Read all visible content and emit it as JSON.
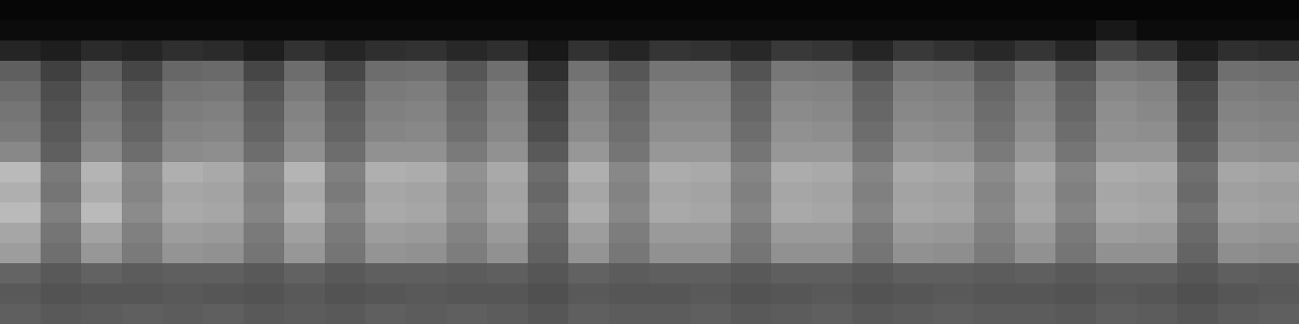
{
  "chart_data": {
    "type": "heatmap",
    "tick_labels": false,
    "color": "greys",
    "zlim": [
      0,
      100
    ],
    "cells": [
      [
        2,
        2,
        2,
        2,
        2,
        2,
        2,
        2,
        2,
        2,
        2,
        2,
        2,
        2,
        2,
        2,
        2,
        2,
        2,
        2,
        2,
        2,
        2,
        2,
        2,
        2,
        2,
        2,
        2,
        2,
        2,
        2
      ],
      [
        4,
        4,
        4,
        4,
        4,
        4,
        4,
        4,
        4,
        4,
        4,
        4,
        4,
        4,
        4,
        4,
        4,
        4,
        4,
        4,
        4,
        4,
        4,
        4,
        4,
        4,
        4,
        8,
        4,
        4,
        4,
        4
      ],
      [
        12,
        10,
        14,
        12,
        15,
        14,
        10,
        16,
        12,
        15,
        16,
        13,
        15,
        8,
        16,
        12,
        17,
        16,
        13,
        18,
        17,
        12,
        18,
        16,
        13,
        17,
        12,
        22,
        18,
        10,
        15,
        14
      ],
      [
        30,
        20,
        32,
        22,
        33,
        34,
        22,
        35,
        22,
        35,
        36,
        27,
        36,
        15,
        37,
        27,
        38,
        38,
        26,
        39,
        38,
        26,
        38,
        37,
        28,
        38,
        26,
        40,
        38,
        18,
        36,
        35
      ],
      [
        35,
        24,
        37,
        27,
        38,
        39,
        27,
        40,
        27,
        40,
        41,
        32,
        41,
        20,
        42,
        32,
        43,
        43,
        31,
        44,
        43,
        31,
        43,
        42,
        33,
        43,
        31,
        45,
        43,
        23,
        41,
        40
      ],
      [
        38,
        26,
        40,
        30,
        41,
        42,
        30,
        43,
        30,
        42,
        43,
        34,
        43,
        22,
        44,
        34,
        45,
        45,
        33,
        46,
        45,
        33,
        45,
        44,
        35,
        45,
        33,
        47,
        45,
        25,
        43,
        42
      ],
      [
        40,
        28,
        42,
        32,
        43,
        44,
        32,
        45,
        32,
        44,
        45,
        36,
        45,
        24,
        46,
        36,
        47,
        47,
        35,
        48,
        47,
        35,
        47,
        46,
        37,
        47,
        35,
        48,
        47,
        27,
        45,
        44
      ],
      [
        45,
        30,
        46,
        35,
        46,
        47,
        35,
        48,
        35,
        48,
        48,
        40,
        48,
        28,
        50,
        38,
        50,
        50,
        38,
        50,
        50,
        38,
        50,
        49,
        40,
        50,
        38,
        50,
        50,
        30,
        48,
        47
      ],
      [
        62,
        40,
        60,
        45,
        58,
        56,
        44,
        60,
        42,
        58,
        57,
        48,
        56,
        35,
        58,
        45,
        57,
        56,
        44,
        57,
        56,
        44,
        56,
        55,
        46,
        56,
        44,
        57,
        56,
        36,
        55,
        54
      ],
      [
        58,
        38,
        57,
        44,
        55,
        54,
        42,
        56,
        40,
        55,
        54,
        46,
        54,
        33,
        55,
        43,
        55,
        54,
        42,
        55,
        54,
        42,
        54,
        53,
        44,
        54,
        42,
        55,
        54,
        34,
        53,
        52
      ],
      [
        62,
        42,
        62,
        46,
        56,
        55,
        44,
        58,
        43,
        56,
        55,
        47,
        55,
        36,
        57,
        45,
        56,
        55,
        44,
        56,
        55,
        44,
        55,
        54,
        45,
        55,
        44,
        56,
        55,
        37,
        54,
        53
      ],
      [
        55,
        38,
        54,
        42,
        52,
        51,
        40,
        53,
        40,
        52,
        51,
        43,
        51,
        33,
        52,
        41,
        51,
        51,
        40,
        51,
        51,
        40,
        51,
        50,
        42,
        51,
        40,
        52,
        51,
        34,
        50,
        49
      ],
      [
        52,
        36,
        50,
        40,
        49,
        48,
        38,
        50,
        38,
        49,
        48,
        41,
        48,
        31,
        49,
        39,
        48,
        48,
        38,
        48,
        48,
        38,
        48,
        47,
        40,
        48,
        38,
        48,
        48,
        32,
        47,
        46
      ],
      [
        32,
        28,
        31,
        29,
        30,
        30,
        28,
        31,
        28,
        30,
        30,
        29,
        30,
        27,
        31,
        29,
        30,
        30,
        28,
        30,
        30,
        28,
        30,
        30,
        29,
        30,
        28,
        30,
        30,
        27,
        30,
        29
      ],
      [
        28,
        26,
        27,
        27,
        28,
        27,
        26,
        28,
        26,
        27,
        28,
        27,
        27,
        25,
        28,
        27,
        27,
        28,
        26,
        27,
        28,
        26,
        27,
        28,
        27,
        27,
        26,
        28,
        27,
        25,
        27,
        28
      ],
      [
        30,
        28,
        29,
        30,
        29,
        30,
        28,
        29,
        28,
        30,
        29,
        30,
        29,
        27,
        30,
        29,
        29,
        30,
        28,
        29,
        30,
        28,
        29,
        30,
        29,
        29,
        28,
        30,
        29,
        27,
        29,
        30
      ]
    ]
  }
}
